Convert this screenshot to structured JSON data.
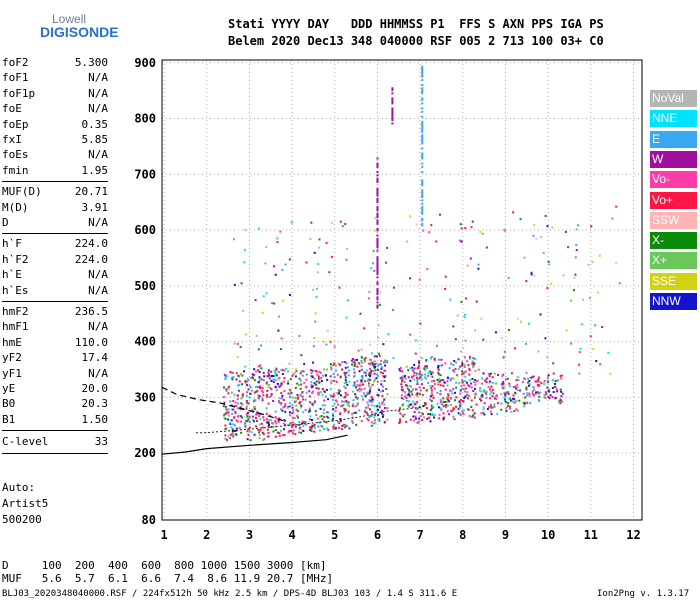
{
  "logo": {
    "line1": "Lowell",
    "line2": "DIGISONDE"
  },
  "header": {
    "line1": "Stati YYYY DAY   DDD HHMMSS P1  FFS S AXN PPS IGA PS",
    "line2": "Belem 2020 Dec13 348 040000 RSF 005 2 713 100 03+ C0"
  },
  "params_group1": [
    {
      "name": "foF2",
      "value": "5.300"
    },
    {
      "name": "foF1",
      "value": "N/A"
    },
    {
      "name": "foF1p",
      "value": "N/A"
    },
    {
      "name": "foE",
      "value": "N/A"
    },
    {
      "name": "foEp",
      "value": "0.35"
    },
    {
      "name": "fxI",
      "value": "5.85"
    },
    {
      "name": "foEs",
      "value": "N/A"
    },
    {
      "name": "fmin",
      "value": "1.95"
    }
  ],
  "params_group2": [
    {
      "name": "MUF(D)",
      "value": "20.71"
    },
    {
      "name": "M(D)",
      "value": "3.91"
    },
    {
      "name": "D",
      "value": "N/A"
    }
  ],
  "params_group3": [
    {
      "name": "h`F",
      "value": "224.0"
    },
    {
      "name": "h`F2",
      "value": "224.0"
    },
    {
      "name": "h`E",
      "value": "N/A"
    },
    {
      "name": "h`Es",
      "value": "N/A"
    }
  ],
  "params_group4": [
    {
      "name": "hmF2",
      "value": "236.5"
    },
    {
      "name": "hmF1",
      "value": "N/A"
    },
    {
      "name": "hmE",
      "value": "110.0"
    },
    {
      "name": "yF2",
      "value": "17.4"
    },
    {
      "name": "yF1",
      "value": "N/A"
    },
    {
      "name": "yE",
      "value": "20.0"
    },
    {
      "name": "B0",
      "value": "20.3"
    },
    {
      "name": "B1",
      "value": "1.50"
    }
  ],
  "clevel": {
    "name": "C-level",
    "value": "33"
  },
  "autoscaling": {
    "line1": "Auto:",
    "line2": "Artist5",
    "line3": "500200"
  },
  "legend": [
    {
      "label": "NoVal",
      "color": "#b4b4b4"
    },
    {
      "label": "NNE",
      "color": "#00e0ff"
    },
    {
      "label": "E",
      "color": "#3aa8f0"
    },
    {
      "label": "W",
      "color": "#a0109c"
    },
    {
      "label": "Vo-",
      "color": "#ff3ca8"
    },
    {
      "label": "Vo+",
      "color": "#ff1446"
    },
    {
      "label": "SSW",
      "color": "#ffb4b4"
    },
    {
      "label": "X-",
      "color": "#0a8c0a"
    },
    {
      "label": "X+",
      "color": "#6ac85a"
    },
    {
      "label": "SSE",
      "color": "#d2d214"
    },
    {
      "label": "NNW",
      "color": "#1414d0"
    }
  ],
  "footer": {
    "d_row": "D     100  200  400  600  800 1000 1500 3000 [km]",
    "muf_row": "MUF   5.6  5.7  6.1  6.6  7.4  8.6 11.9 20.7 [MHz]",
    "bottom": "BLJ03_2020348040000.RSF / 224fx512h 50 kHz 2.5 km / DPS-4D BLJ03 103 / 1.4 S 311.6 E",
    "version": "Ion2Png v. 1.3.17"
  },
  "chart_data": {
    "type": "scatter",
    "x_ticks": [
      "1",
      "2",
      "3",
      "4",
      "5",
      "6",
      "7",
      "8",
      "9",
      "10",
      "11",
      "12"
    ],
    "y_ticks": [
      "80",
      "200",
      "300",
      "400",
      "500",
      "600",
      "700",
      "800",
      "900"
    ],
    "xlim": [
      0.95,
      12.2
    ],
    "ylim": [
      80,
      905
    ],
    "trace_bands": [
      {
        "x": 2.6,
        "y_lo": 225,
        "y_hi": 350
      },
      {
        "x": 3.1,
        "y_lo": 225,
        "y_hi": 360
      },
      {
        "x": 3.6,
        "y_lo": 230,
        "y_hi": 355
      },
      {
        "x": 4.1,
        "y_lo": 235,
        "y_hi": 350
      },
      {
        "x": 4.6,
        "y_lo": 240,
        "y_hi": 355
      },
      {
        "x": 5.1,
        "y_lo": 245,
        "y_hi": 365
      },
      {
        "x": 5.6,
        "y_lo": 250,
        "y_hi": 375
      },
      {
        "x": 6.0,
        "y_lo": 250,
        "y_hi": 380
      },
      {
        "x": 6.7,
        "y_lo": 255,
        "y_hi": 360
      },
      {
        "x": 7.1,
        "y_lo": 258,
        "y_hi": 375
      },
      {
        "x": 7.6,
        "y_lo": 262,
        "y_hi": 370
      },
      {
        "x": 8.1,
        "y_lo": 265,
        "y_hi": 375
      },
      {
        "x": 8.6,
        "y_lo": 270,
        "y_hi": 345
      },
      {
        "x": 9.1,
        "y_lo": 275,
        "y_hi": 345
      },
      {
        "x": 9.6,
        "y_lo": 285,
        "y_hi": 340
      },
      {
        "x": 10.1,
        "y_lo": 290,
        "y_hi": 345
      }
    ],
    "f_trace": [
      {
        "x": 1.75,
        "y": 236.5
      },
      {
        "x": 2.0,
        "y": 236.5
      },
      {
        "x": 3.0,
        "y": 243
      },
      {
        "x": 4.0,
        "y": 250
      },
      {
        "x": 5.0,
        "y": 258
      },
      {
        "x": 5.6,
        "y": 265
      },
      {
        "x": 6.2,
        "y": 275
      },
      {
        "x": 7.0,
        "y": 282
      }
    ],
    "profile_solid": [
      {
        "x": 0.95,
        "y": 198
      },
      {
        "x": 1.5,
        "y": 202
      },
      {
        "x": 2.0,
        "y": 208
      },
      {
        "x": 3.0,
        "y": 214
      },
      {
        "x": 4.0,
        "y": 219
      },
      {
        "x": 4.8,
        "y": 224
      },
      {
        "x": 5.3,
        "y": 232
      }
    ],
    "profile_dashed": [
      {
        "x": 0.95,
        "y": 318
      },
      {
        "x": 1.3,
        "y": 305
      },
      {
        "x": 1.8,
        "y": 296
      },
      {
        "x": 2.3,
        "y": 290
      },
      {
        "x": 2.8,
        "y": 280
      },
      {
        "x": 3.3,
        "y": 270
      },
      {
        "x": 3.8,
        "y": 258
      }
    ],
    "columns": [
      {
        "x": 6.0,
        "y_lo": 460,
        "y_hi": 740,
        "color": "#a0109c"
      },
      {
        "x": 7.05,
        "y_lo": 610,
        "y_hi": 895,
        "color": "#3aa8f0"
      },
      {
        "x": 6.35,
        "y_lo": 790,
        "y_hi": 860,
        "color": "#a0109c"
      }
    ]
  }
}
